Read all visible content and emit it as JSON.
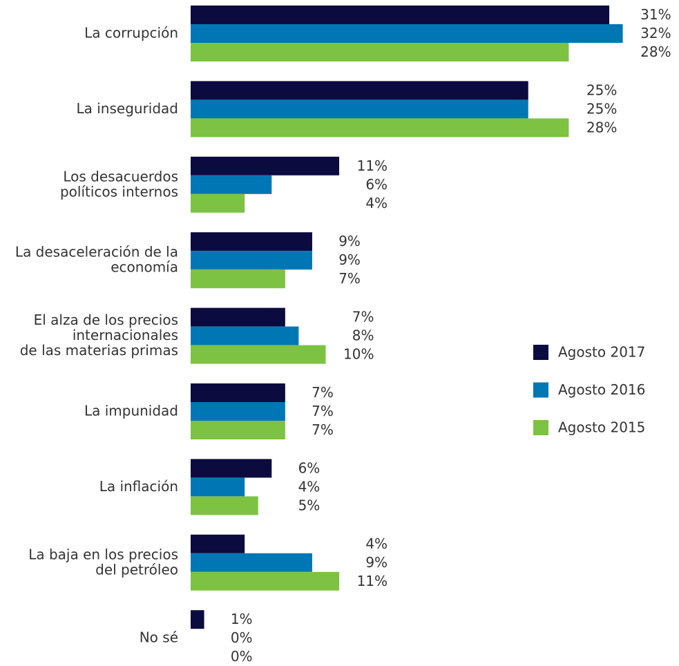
{
  "chart_data": {
    "type": "barh",
    "categories": [
      [
        "La corrupción"
      ],
      [
        "La inseguridad"
      ],
      [
        "Los desacuerdos",
        "políticos internos"
      ],
      [
        "La desaceleración de la",
        "economía"
      ],
      [
        "El alza de los precios",
        "internacionales",
        "de las materias primas"
      ],
      [
        "La impunidad"
      ],
      [
        "La inflación"
      ],
      [
        "La baja en los precios",
        "del petróleo"
      ],
      [
        "No sé"
      ]
    ],
    "series": [
      {
        "name": "Agosto 2017",
        "color": "#0b0b3f",
        "values": [
          31,
          25,
          11,
          9,
          7,
          7,
          6,
          4,
          1
        ],
        "value_labels": [
          "31%",
          "25%",
          "11%",
          "9%",
          "7%",
          "7%",
          "6%",
          "4%",
          "1%"
        ]
      },
      {
        "name": "Agosto 2016",
        "color": "#0077b5",
        "values": [
          32,
          25,
          6,
          9,
          8,
          7,
          4,
          9,
          0
        ],
        "value_labels": [
          "32%",
          "25%",
          "6%",
          "9%",
          "8%",
          "7%",
          "4%",
          "9%",
          "0%"
        ]
      },
      {
        "name": "Agosto 2015",
        "color": "#7dc242",
        "values": [
          28,
          28,
          4,
          7,
          10,
          7,
          5,
          11,
          0
        ],
        "value_labels": [
          "28%",
          "28%",
          "4%",
          "7%",
          "10%",
          "7%",
          "5%",
          "11%",
          "0%"
        ]
      }
    ],
    "legend": "right"
  }
}
